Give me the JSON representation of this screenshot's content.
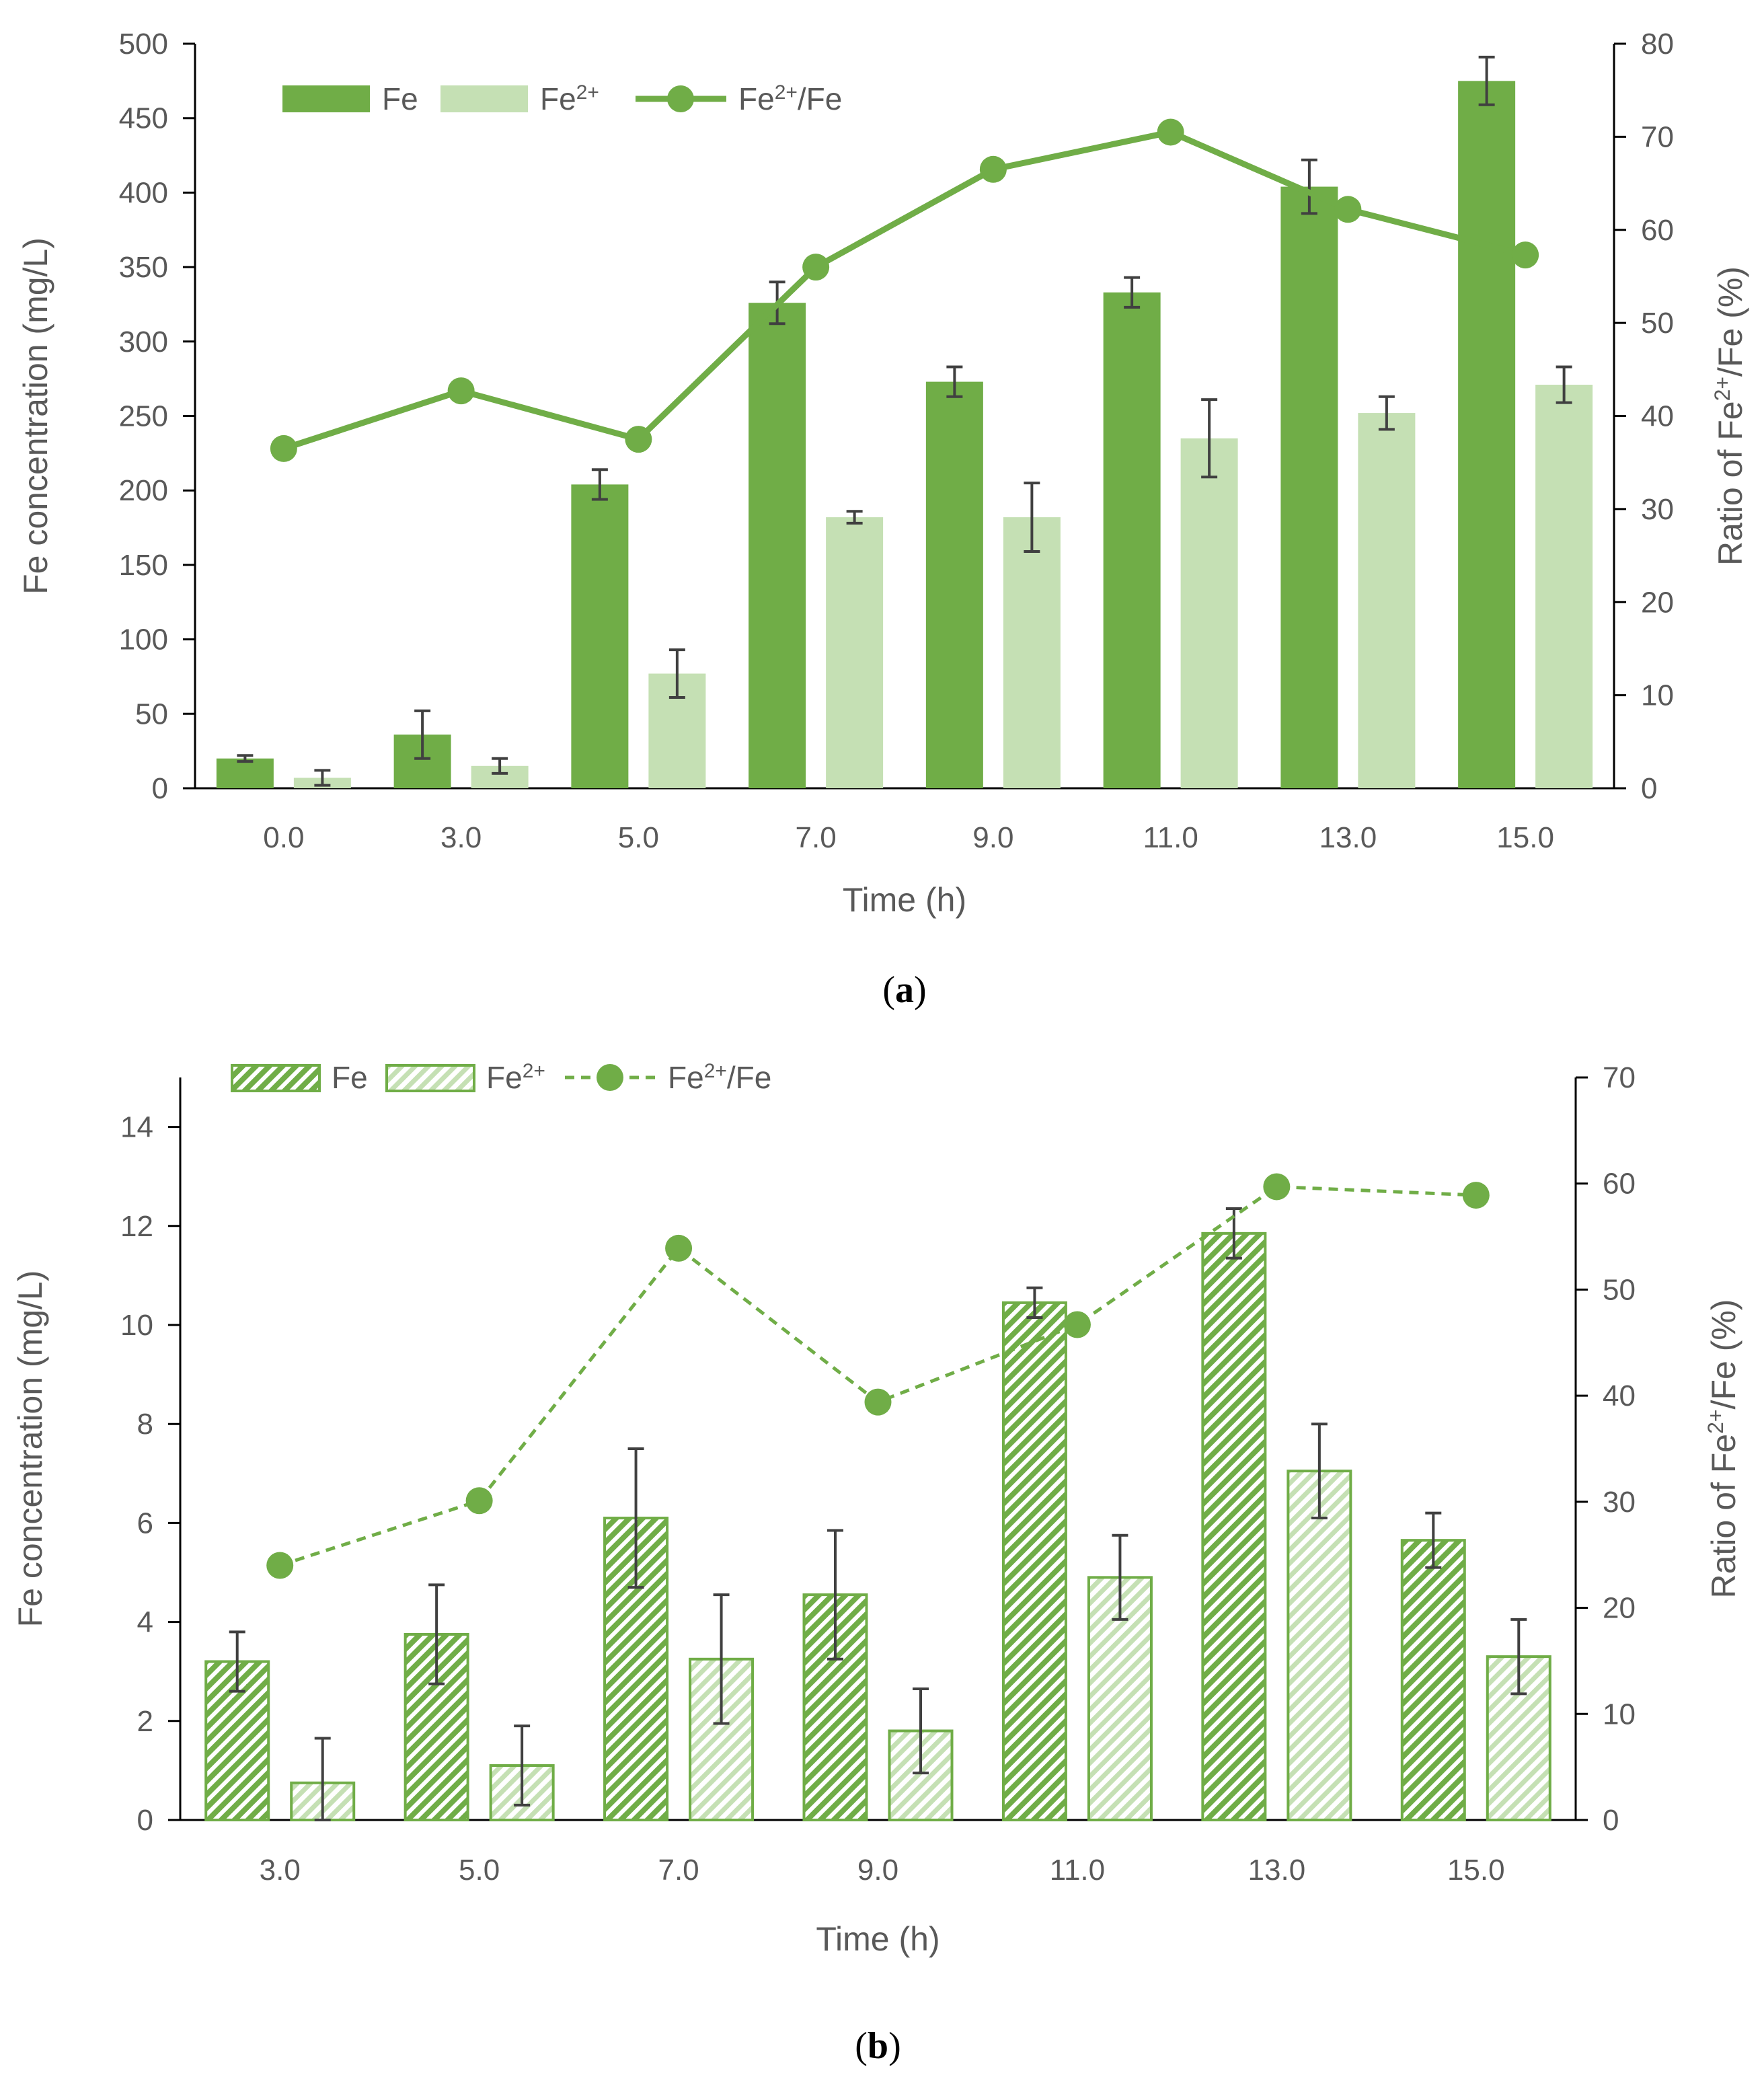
{
  "colors": {
    "fe": "#70ad47",
    "fe2": "#c5e0b4",
    "ratio_line": "#70ad47",
    "axis": "#000000",
    "error_bar": "#404040",
    "text": "#595959"
  },
  "chart_data": [
    {
      "type": "bar",
      "panel": "(a)",
      "caption_letter": "a",
      "style": "solid",
      "xlabel": "Time (h)",
      "ylabel": "Fe concentration (mg/L)",
      "y2label_prefix": "Ratio of Fe",
      "y2label_sup": "2+",
      "y2label_suffix": "/Fe (%)",
      "categories": [
        "0.0",
        "3.0",
        "5.0",
        "7.0",
        "9.0",
        "11.0",
        "13.0",
        "15.0"
      ],
      "ylim": [
        0,
        500
      ],
      "yticks": [
        "0",
        "50",
        "100",
        "150",
        "200",
        "250",
        "300",
        "350",
        "400",
        "450",
        "500"
      ],
      "y2lim": [
        0,
        80
      ],
      "y2ticks": [
        "0",
        "10",
        "20",
        "30",
        "40",
        "50",
        "60",
        "70",
        "80"
      ],
      "legend": {
        "fe": "Fe",
        "fe2_base": "Fe",
        "fe2_sup": "2+",
        "ratio_base": "Fe",
        "ratio_sup": "2+",
        "ratio_tail": "/Fe"
      },
      "series": [
        {
          "name": "Fe",
          "axis": "left",
          "values": [
            20,
            36,
            204,
            326,
            273,
            333,
            404,
            475
          ],
          "errors": [
            2,
            16,
            10,
            14,
            10,
            10,
            18,
            16
          ]
        },
        {
          "name": "Fe2+",
          "axis": "left",
          "values": [
            7,
            15,
            77,
            182,
            182,
            235,
            252,
            271
          ],
          "errors": [
            5,
            5,
            16,
            4,
            23,
            26,
            11,
            12
          ]
        },
        {
          "name": "Fe2+/Fe",
          "axis": "right",
          "values": [
            36.5,
            42.7,
            37.5,
            56,
            66.5,
            70.5,
            62.2,
            57.3
          ]
        }
      ]
    },
    {
      "type": "bar",
      "panel": "(b)",
      "caption_letter": "b",
      "style": "hatched",
      "xlabel": "Time (h)",
      "ylabel": "Fe concentration (mg/L)",
      "y2label_prefix": "Ratio of Fe",
      "y2label_sup": "2+",
      "y2label_suffix": "/Fe (%)",
      "categories": [
        "3.0",
        "5.0",
        "7.0",
        "9.0",
        "11.0",
        "13.0",
        "15.0"
      ],
      "ylim": [
        0,
        15
      ],
      "yticks": [
        "0",
        "2",
        "4",
        "6",
        "8",
        "10",
        "12",
        "14"
      ],
      "y2lim": [
        0,
        70
      ],
      "y2ticks": [
        "0",
        "10",
        "20",
        "30",
        "40",
        "50",
        "60",
        "70"
      ],
      "legend": {
        "fe": "Fe",
        "fe2_base": "Fe",
        "fe2_sup": "2+",
        "ratio_base": "Fe",
        "ratio_sup": "2+",
        "ratio_tail": "/Fe"
      },
      "series": [
        {
          "name": "Fe",
          "axis": "left",
          "values": [
            3.2,
            3.75,
            6.1,
            4.55,
            10.45,
            11.85,
            5.65
          ],
          "errors": [
            0.6,
            1.0,
            1.4,
            1.3,
            0.3,
            0.5,
            0.55
          ]
        },
        {
          "name": "Fe2+",
          "axis": "left",
          "values": [
            0.75,
            1.1,
            3.25,
            1.8,
            4.9,
            7.05,
            3.3
          ],
          "errors": [
            0.9,
            0.8,
            1.3,
            0.85,
            0.85,
            0.95,
            0.75
          ]
        },
        {
          "name": "Fe2+/Fe",
          "axis": "right",
          "values": [
            24,
            30.1,
            53.9,
            39.4,
            46.7,
            59.7,
            58.9
          ]
        }
      ]
    }
  ]
}
